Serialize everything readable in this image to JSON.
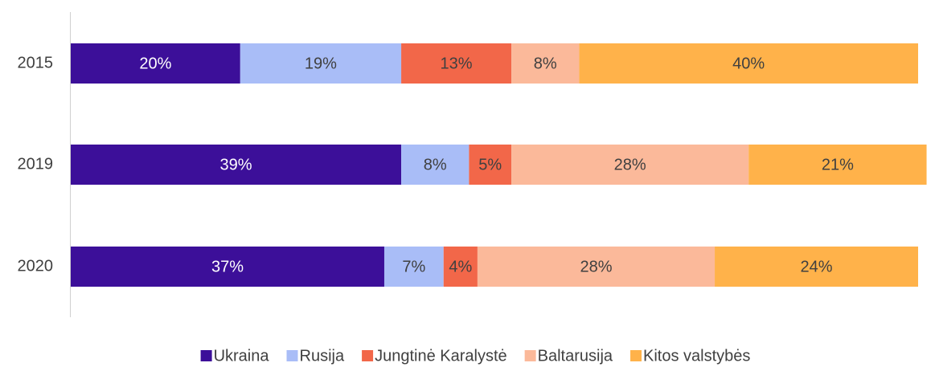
{
  "chart_data": {
    "type": "stacked-bar-horizontal",
    "categories": [
      "2015",
      "2019",
      "2020"
    ],
    "xlim": [
      0,
      100
    ],
    "legend": "bottom",
    "series": [
      {
        "name": "Ukraina",
        "color": "#3c0f99",
        "values": [
          20,
          39,
          37
        ],
        "value_labels": [
          "20%",
          "39%",
          "37%"
        ]
      },
      {
        "name": "Rusija",
        "color": "#a9bdf7",
        "values": [
          19,
          8,
          7
        ],
        "value_labels": [
          "19%",
          "8%",
          "7%"
        ]
      },
      {
        "name": "Jungtinė Karalystė",
        "color": "#f26749",
        "values": [
          13,
          5,
          4
        ],
        "value_labels": [
          "13%",
          "5%",
          "4%"
        ]
      },
      {
        "name": "Baltarusija",
        "color": "#fbb99a",
        "values": [
          8,
          28,
          28
        ],
        "value_labels": [
          "8%",
          "28%",
          "28%"
        ]
      },
      {
        "name": "Kitos valstybės",
        "color": "#ffb24a",
        "values": [
          40,
          21,
          24
        ],
        "value_labels": [
          "40%",
          "21%",
          "24%"
        ]
      }
    ]
  }
}
